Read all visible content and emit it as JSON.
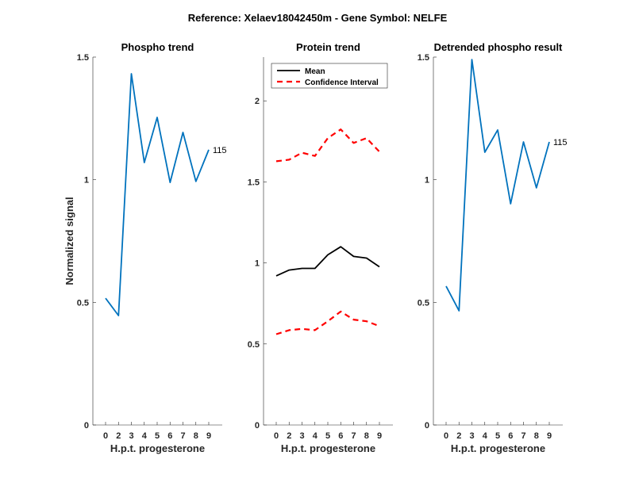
{
  "chart_data": {
    "title": "Reference:  Xelaev18042450m - Gene Symbol:  NELFE",
    "panels": [
      {
        "type": "line",
        "title": "Phospho trend",
        "xlabel": "H.p.t. progesterone",
        "ylabel": "Normalized signal",
        "ylim": [
          0,
          1.5
        ],
        "yticks": [
          "0",
          "0.5",
          "1",
          "1.5"
        ],
        "ytick_values": [
          0,
          0.5,
          1,
          1.5
        ],
        "x_tick_labels": [
          "0",
          "2",
          "3",
          "4",
          "5",
          "6",
          "7",
          "8",
          "9"
        ],
        "series": [
          {
            "name": "phospho",
            "color": "#0072BD",
            "style": "solid",
            "values": [
              0.517,
              0.446,
              1.432,
              1.07,
              1.254,
              0.989,
              1.193,
              0.993,
              1.122
            ]
          }
        ],
        "end_label": "115"
      },
      {
        "type": "line",
        "title": "Protein trend",
        "xlabel": "H.p.t. progesterone",
        "ylabel": "",
        "ylim": [
          0,
          2.27
        ],
        "yticks": [
          "0",
          "0.5",
          "1",
          "1.5",
          "2"
        ],
        "ytick_values": [
          0,
          0.5,
          1,
          1.5,
          2
        ],
        "x_tick_labels": [
          "0",
          "2",
          "3",
          "4",
          "5",
          "6",
          "7",
          "8",
          "9"
        ],
        "legend": {
          "position": "top-left",
          "entries": [
            "Mean",
            "Confidence Interval"
          ]
        },
        "series": [
          {
            "name": "Mean",
            "color": "#000000",
            "style": "solid",
            "values": [
              0.92,
              0.956,
              0.966,
              0.966,
              1.05,
              1.1,
              1.04,
              1.03,
              0.976
            ]
          },
          {
            "name": "Confidence Interval upper",
            "color": "#FF0000",
            "style": "dashed",
            "values": [
              1.627,
              1.637,
              1.68,
              1.66,
              1.77,
              1.824,
              1.74,
              1.77,
              1.686
            ]
          },
          {
            "name": "Confidence Interval lower",
            "color": "#FF0000",
            "style": "dashed",
            "values": [
              0.56,
              0.585,
              0.593,
              0.585,
              0.64,
              0.7,
              0.65,
              0.64,
              0.61
            ]
          }
        ]
      },
      {
        "type": "line",
        "title": "Detrended phospho result",
        "xlabel": "H.p.t. progesterone",
        "ylabel": "",
        "ylim": [
          0,
          1.5
        ],
        "yticks": [
          "0",
          "0.5",
          "1",
          "1.5"
        ],
        "ytick_values": [
          0,
          0.5,
          1,
          1.5
        ],
        "x_tick_labels": [
          "0",
          "2",
          "3",
          "4",
          "5",
          "6",
          "7",
          "8",
          "9"
        ],
        "series": [
          {
            "name": "detrended",
            "color": "#0072BD",
            "style": "solid",
            "values": [
              0.566,
              0.466,
              1.49,
              1.112,
              1.203,
              0.902,
              1.154,
              0.967,
              1.154
            ]
          }
        ],
        "end_label": "115"
      }
    ]
  }
}
